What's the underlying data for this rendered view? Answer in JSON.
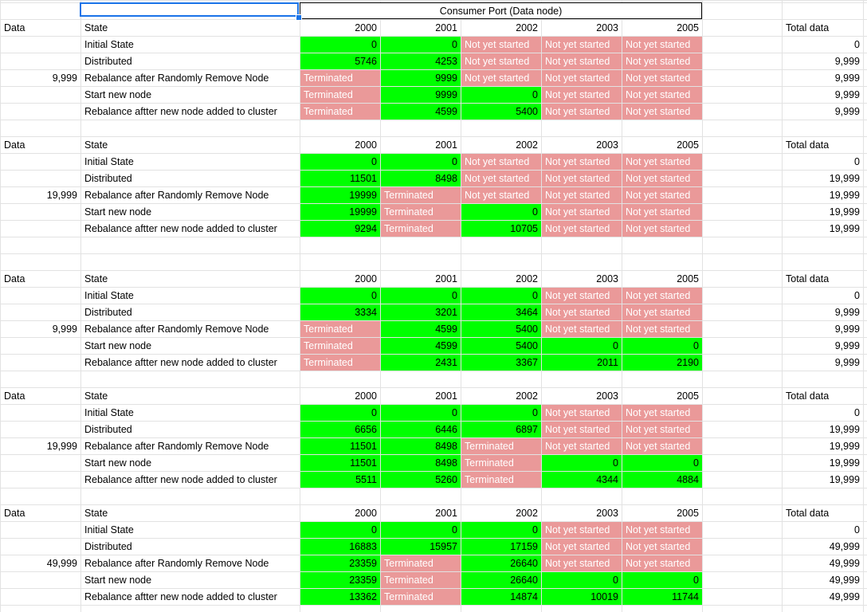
{
  "header": {
    "merged_title": "Consumer Port (Data node)"
  },
  "colors": {
    "running": "#00ff00",
    "stopped": "#ea9999",
    "selection": "#1a73e8"
  },
  "blocks": [
    {
      "data_label": "Data",
      "data_value": "9,999",
      "total_label": "Total data",
      "state_label": "State",
      "ports": [
        "2000",
        "2001",
        "2002",
        "2003",
        "2005"
      ],
      "show_ports": false,
      "rows": [
        {
          "label": "Initial State",
          "cells": [
            {
              "v": "0",
              "t": "g"
            },
            {
              "v": "0",
              "t": "g"
            },
            {
              "v": "Not yet started",
              "t": "r"
            },
            {
              "v": "Not yet started",
              "t": "r"
            },
            {
              "v": "Not yet started",
              "t": "r"
            }
          ],
          "total": "0"
        },
        {
          "label": "Distributed",
          "cells": [
            {
              "v": "5746",
              "t": "g"
            },
            {
              "v": "4253",
              "t": "g"
            },
            {
              "v": "Not yet started",
              "t": "r"
            },
            {
              "v": "Not yet started",
              "t": "r"
            },
            {
              "v": "Not yet started",
              "t": "r"
            }
          ],
          "total": "9,999"
        },
        {
          "label": "Rebalance after Randomly Remove Node",
          "cells": [
            {
              "v": "Terminated",
              "t": "r"
            },
            {
              "v": "9999",
              "t": "g"
            },
            {
              "v": "Not yet started",
              "t": "r"
            },
            {
              "v": "Not yet started",
              "t": "r"
            },
            {
              "v": "Not yet started",
              "t": "r"
            }
          ],
          "total": "9,999"
        },
        {
          "label": "Start new node",
          "cells": [
            {
              "v": "Terminated",
              "t": "r"
            },
            {
              "v": "9999",
              "t": "g"
            },
            {
              "v": "0",
              "t": "g"
            },
            {
              "v": "Not yet started",
              "t": "r"
            },
            {
              "v": "Not yet started",
              "t": "r"
            }
          ],
          "total": "9,999"
        },
        {
          "label": "Rebalance aftter new node added to cluster",
          "cells": [
            {
              "v": "Terminated",
              "t": "r"
            },
            {
              "v": "4599",
              "t": "g"
            },
            {
              "v": "5400",
              "t": "g"
            },
            {
              "v": "Not yet started",
              "t": "r"
            },
            {
              "v": "Not yet started",
              "t": "r"
            }
          ],
          "total": "9,999"
        }
      ]
    },
    {
      "data_label": "Data",
      "data_value": "19,999",
      "total_label": "Total data",
      "state_label": "State",
      "ports": [
        "2000",
        "2001",
        "2002",
        "2003",
        "2005"
      ],
      "show_ports": true,
      "rows": [
        {
          "label": "Initial State",
          "cells": [
            {
              "v": "0",
              "t": "g"
            },
            {
              "v": "0",
              "t": "g"
            },
            {
              "v": "Not yet started",
              "t": "r"
            },
            {
              "v": "Not yet started",
              "t": "r"
            },
            {
              "v": "Not yet started",
              "t": "r"
            }
          ],
          "total": "0"
        },
        {
          "label": "Distributed",
          "cells": [
            {
              "v": "11501",
              "t": "g"
            },
            {
              "v": "8498",
              "t": "g"
            },
            {
              "v": "Not yet started",
              "t": "r"
            },
            {
              "v": "Not yet started",
              "t": "r"
            },
            {
              "v": "Not yet started",
              "t": "r"
            }
          ],
          "total": "19,999"
        },
        {
          "label": "Rebalance after Randomly Remove Node",
          "cells": [
            {
              "v": "19999",
              "t": "g"
            },
            {
              "v": "Terminated",
              "t": "r"
            },
            {
              "v": "Not yet started",
              "t": "r"
            },
            {
              "v": "Not yet started",
              "t": "r"
            },
            {
              "v": "Not yet started",
              "t": "r"
            }
          ],
          "total": "19,999"
        },
        {
          "label": "Start new node",
          "cells": [
            {
              "v": "19999",
              "t": "g"
            },
            {
              "v": "Terminated",
              "t": "r"
            },
            {
              "v": "0",
              "t": "g"
            },
            {
              "v": "Not yet started",
              "t": "r"
            },
            {
              "v": "Not yet started",
              "t": "r"
            }
          ],
          "total": "19,999"
        },
        {
          "label": "Rebalance aftter new node added to cluster",
          "cells": [
            {
              "v": "9294",
              "t": "g"
            },
            {
              "v": "Terminated",
              "t": "r"
            },
            {
              "v": "10705",
              "t": "g"
            },
            {
              "v": "Not yet started",
              "t": "r"
            },
            {
              "v": "Not yet started",
              "t": "r"
            }
          ],
          "total": "19,999"
        }
      ]
    },
    {
      "data_label": "Data",
      "data_value": "9,999",
      "total_label": "Total data",
      "state_label": "State",
      "ports": [
        "2000",
        "2001",
        "2002",
        "2003",
        "2005"
      ],
      "show_ports": true,
      "rows": [
        {
          "label": "Initial State",
          "cells": [
            {
              "v": "0",
              "t": "g"
            },
            {
              "v": "0",
              "t": "g"
            },
            {
              "v": "0",
              "t": "g"
            },
            {
              "v": "Not yet started",
              "t": "r"
            },
            {
              "v": "Not yet started",
              "t": "r"
            }
          ],
          "total": "0"
        },
        {
          "label": "Distributed",
          "cells": [
            {
              "v": "3334",
              "t": "g"
            },
            {
              "v": "3201",
              "t": "g"
            },
            {
              "v": "3464",
              "t": "g"
            },
            {
              "v": "Not yet started",
              "t": "r"
            },
            {
              "v": "Not yet started",
              "t": "r"
            }
          ],
          "total": "9,999"
        },
        {
          "label": "Rebalance after Randomly Remove Node",
          "cells": [
            {
              "v": "Terminated",
              "t": "r"
            },
            {
              "v": "4599",
              "t": "g"
            },
            {
              "v": "5400",
              "t": "g"
            },
            {
              "v": "Not yet started",
              "t": "r"
            },
            {
              "v": "Not yet started",
              "t": "r"
            }
          ],
          "total": "9,999"
        },
        {
          "label": "Start new node",
          "cells": [
            {
              "v": "Terminated",
              "t": "r"
            },
            {
              "v": "4599",
              "t": "g"
            },
            {
              "v": "5400",
              "t": "g"
            },
            {
              "v": "0",
              "t": "g"
            },
            {
              "v": "0",
              "t": "g"
            }
          ],
          "total": "9,999"
        },
        {
          "label": "Rebalance aftter new node added to cluster",
          "cells": [
            {
              "v": "Terminated",
              "t": "r"
            },
            {
              "v": "2431",
              "t": "g"
            },
            {
              "v": "3367",
              "t": "g"
            },
            {
              "v": "2011",
              "t": "g"
            },
            {
              "v": "2190",
              "t": "g"
            }
          ],
          "total": "9,999"
        }
      ]
    },
    {
      "data_label": "Data",
      "data_value": "19,999",
      "total_label": "Total data",
      "state_label": "State",
      "ports": [
        "2000",
        "2001",
        "2002",
        "2003",
        "2005"
      ],
      "show_ports": true,
      "rows": [
        {
          "label": "Initial State",
          "cells": [
            {
              "v": "0",
              "t": "g"
            },
            {
              "v": "0",
              "t": "g"
            },
            {
              "v": "0",
              "t": "g"
            },
            {
              "v": "Not yet started",
              "t": "r"
            },
            {
              "v": "Not yet started",
              "t": "r"
            }
          ],
          "total": "0"
        },
        {
          "label": "Distributed",
          "cells": [
            {
              "v": "6656",
              "t": "g"
            },
            {
              "v": "6446",
              "t": "g"
            },
            {
              "v": "6897",
              "t": "g"
            },
            {
              "v": "Not yet started",
              "t": "r"
            },
            {
              "v": "Not yet started",
              "t": "r"
            }
          ],
          "total": "19,999"
        },
        {
          "label": "Rebalance after Randomly Remove Node",
          "cells": [
            {
              "v": "11501",
              "t": "g"
            },
            {
              "v": "8498",
              "t": "g"
            },
            {
              "v": "Terminated",
              "t": "r"
            },
            {
              "v": "Not yet started",
              "t": "r"
            },
            {
              "v": "Not yet started",
              "t": "r"
            }
          ],
          "total": "19,999"
        },
        {
          "label": "Start new node",
          "cells": [
            {
              "v": "11501",
              "t": "g"
            },
            {
              "v": "8498",
              "t": "g"
            },
            {
              "v": "Terminated",
              "t": "r"
            },
            {
              "v": "0",
              "t": "g"
            },
            {
              "v": "0",
              "t": "g"
            }
          ],
          "total": "19,999"
        },
        {
          "label": "Rebalance aftter new node added to cluster",
          "cells": [
            {
              "v": "5511",
              "t": "g"
            },
            {
              "v": "5260",
              "t": "g"
            },
            {
              "v": "Terminated",
              "t": "r"
            },
            {
              "v": "4344",
              "t": "g"
            },
            {
              "v": "4884",
              "t": "g"
            }
          ],
          "total": "19,999"
        }
      ]
    },
    {
      "data_label": "Data",
      "data_value": "49,999",
      "total_label": "Total data",
      "state_label": "State",
      "ports": [
        "2000",
        "2001",
        "2002",
        "2003",
        "2005"
      ],
      "show_ports": true,
      "rows": [
        {
          "label": "Initial State",
          "cells": [
            {
              "v": "0",
              "t": "g"
            },
            {
              "v": "0",
              "t": "g"
            },
            {
              "v": "0",
              "t": "g"
            },
            {
              "v": "Not yet started",
              "t": "r"
            },
            {
              "v": "Not yet started",
              "t": "r"
            }
          ],
          "total": "0"
        },
        {
          "label": "Distributed",
          "cells": [
            {
              "v": "16883",
              "t": "g"
            },
            {
              "v": "15957",
              "t": "g"
            },
            {
              "v": "17159",
              "t": "g"
            },
            {
              "v": "Not yet started",
              "t": "r"
            },
            {
              "v": "Not yet started",
              "t": "r"
            }
          ],
          "total": "49,999"
        },
        {
          "label": "Rebalance after Randomly Remove Node",
          "cells": [
            {
              "v": "23359",
              "t": "g"
            },
            {
              "v": "Terminated",
              "t": "r"
            },
            {
              "v": "26640",
              "t": "g"
            },
            {
              "v": "Not yet started",
              "t": "r"
            },
            {
              "v": "Not yet started",
              "t": "r"
            }
          ],
          "total": "49,999"
        },
        {
          "label": "Start new node",
          "cells": [
            {
              "v": "23359",
              "t": "g"
            },
            {
              "v": "Terminated",
              "t": "r"
            },
            {
              "v": "26640",
              "t": "g"
            },
            {
              "v": "0",
              "t": "g"
            },
            {
              "v": "0",
              "t": "g"
            }
          ],
          "total": "49,999"
        },
        {
          "label": "Rebalance aftter new node added to cluster",
          "cells": [
            {
              "v": "13362",
              "t": "g"
            },
            {
              "v": "Terminated",
              "t": "r"
            },
            {
              "v": "14874",
              "t": "g"
            },
            {
              "v": "10019",
              "t": "g"
            },
            {
              "v": "11744",
              "t": "g"
            }
          ],
          "total": "49,999"
        }
      ]
    }
  ]
}
